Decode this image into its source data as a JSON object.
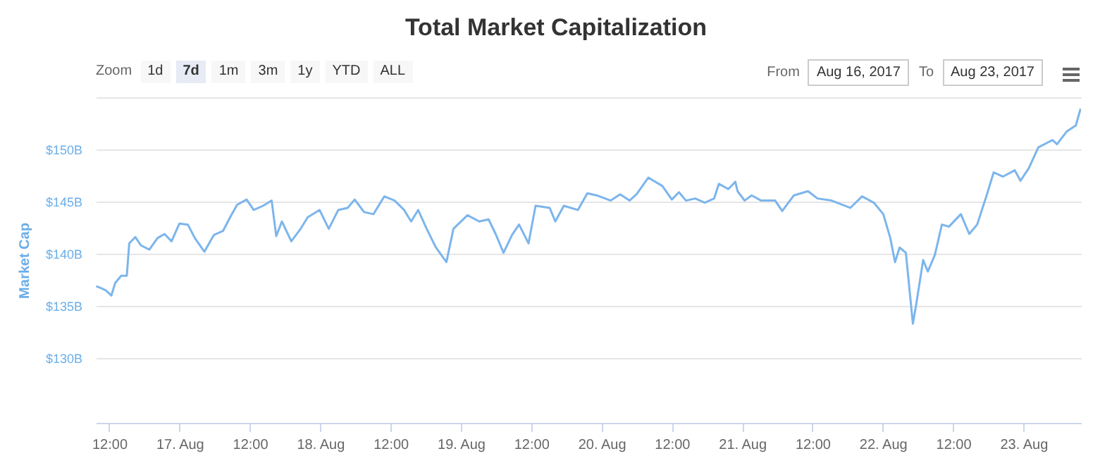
{
  "chart_data": {
    "type": "line",
    "title": "Total Market Capitalization",
    "ylabel": "Market Cap",
    "color": "#7cb5ec",
    "annotations": [
      "Zoom",
      "1d",
      "7d",
      "1m",
      "3m",
      "1y",
      "YTD",
      "ALL",
      "From",
      "Aug 16, 2017",
      "To",
      "Aug 23, 2017"
    ],
    "x": [
      "2017-08-16T09:47",
      "2017-08-16T10:37",
      "2017-08-16T11:24",
      "2017-08-16T12:22",
      "2017-08-16T13:01",
      "2017-08-16T14:03",
      "2017-08-16T15:00",
      "2017-08-16T15:25",
      "2017-08-16T16:27",
      "2017-08-16T17:25",
      "2017-08-16T18:51",
      "2017-08-16T20:14",
      "2017-08-16T21:26",
      "2017-08-16T22:38",
      "2017-08-16T23:59",
      "2017-08-17T01:25",
      "2017-08-17T02:37",
      "2017-08-17T04:14",
      "2017-08-17T05:51",
      "2017-08-17T07:26",
      "2017-08-17T08:38",
      "2017-08-17T09:50",
      "2017-08-17T11:27",
      "2017-08-17T12:39",
      "2017-08-17T14:16",
      "2017-08-17T15:43",
      "2017-08-17T16:30",
      "2017-08-17T17:28",
      "2017-08-17T19:04",
      "2017-08-17T20:40",
      "2017-08-17T21:52",
      "2017-08-17T23:53",
      "2017-08-18T01:28",
      "2017-08-18T03:05",
      "2017-08-18T04:41",
      "2017-08-18T05:53",
      "2017-08-18T07:29",
      "2017-08-18T09:05",
      "2017-08-18T10:56",
      "2017-08-18T12:42",
      "2017-08-18T14:19",
      "2017-08-18T15:31",
      "2017-08-18T16:43",
      "2017-08-18T18:10",
      "2017-08-18T19:45",
      "2017-08-18T21:32",
      "2017-08-18T22:44",
      "2017-08-19T01:08",
      "2017-08-19T03:08",
      "2017-08-19T04:44",
      "2017-08-19T05:56",
      "2017-08-19T07:17",
      "2017-08-19T08:44",
      "2017-08-19T09:56",
      "2017-08-19T11:33",
      "2017-08-19T12:45",
      "2017-08-19T15:10",
      "2017-08-19T16:07",
      "2017-08-19T17:34",
      "2017-08-19T19:58",
      "2017-08-19T21:35",
      "2017-08-19T23:10",
      "2017-08-20T01:34",
      "2017-08-20T03:11",
      "2017-08-20T04:47",
      "2017-08-20T05:59",
      "2017-08-20T07:59",
      "2017-08-20T10:23",
      "2017-08-20T12:00",
      "2017-08-20T13:13",
      "2017-08-20T14:25",
      "2017-08-20T16:00",
      "2017-08-20T17:37",
      "2017-08-20T19:13",
      "2017-08-20T20:01",
      "2017-08-20T21:38",
      "2017-08-20T22:50",
      "2017-08-20T23:13",
      "2017-08-21T00:25",
      "2017-08-21T01:37",
      "2017-08-21T03:14",
      "2017-08-21T05:38",
      "2017-08-21T06:50",
      "2017-08-21T08:50",
      "2017-08-21T11:14",
      "2017-08-21T12:51",
      "2017-08-21T15:15",
      "2017-08-21T18:27",
      "2017-08-21T20:28",
      "2017-08-21T22:28",
      "2017-08-22T00:05",
      "2017-08-22T01:17",
      "2017-08-22T02:05",
      "2017-08-22T02:52",
      "2017-08-22T03:56",
      "2017-08-22T05:08",
      "2017-08-22T05:41",
      "2017-08-22T06:53",
      "2017-08-22T07:41",
      "2017-08-22T08:53",
      "2017-08-22T10:05",
      "2017-08-22T11:17",
      "2017-08-22T13:19",
      "2017-08-22T14:45",
      "2017-08-22T16:06",
      "2017-08-22T17:43",
      "2017-08-22T18:55",
      "2017-08-22T20:31",
      "2017-08-22T22:31",
      "2017-08-22T23:29",
      "2017-08-23T00:55",
      "2017-08-23T02:32",
      "2017-08-23T04:56",
      "2017-08-23T05:44",
      "2017-08-23T07:21",
      "2017-08-23T08:56",
      "2017-08-23T09:45"
    ],
    "values": [
      136.9,
      136.7,
      136.5,
      136.0,
      137.2,
      137.9,
      137.9,
      141.0,
      141.6,
      140.8,
      140.4,
      141.5,
      141.9,
      141.2,
      142.9,
      142.8,
      141.5,
      140.2,
      141.8,
      142.2,
      143.5,
      144.7,
      145.2,
      144.2,
      144.6,
      145.1,
      141.7,
      143.1,
      141.2,
      142.4,
      143.5,
      144.2,
      142.4,
      144.2,
      144.4,
      145.2,
      144.0,
      143.8,
      145.5,
      145.1,
      144.2,
      143.1,
      144.2,
      142.4,
      140.6,
      139.2,
      142.4,
      143.7,
      143.1,
      143.3,
      141.9,
      140.1,
      141.8,
      142.8,
      141.0,
      144.6,
      144.4,
      143.1,
      144.6,
      144.2,
      145.8,
      145.6,
      145.1,
      145.7,
      145.1,
      145.7,
      147.3,
      146.5,
      145.2,
      145.9,
      145.1,
      145.3,
      144.9,
      145.3,
      146.7,
      146.2,
      146.9,
      146.0,
      145.1,
      145.6,
      145.1,
      145.1,
      144.1,
      145.6,
      146.0,
      145.3,
      145.1,
      144.4,
      145.5,
      144.9,
      143.8,
      141.5,
      139.2,
      140.6,
      140.1,
      133.3,
      135.1,
      139.4,
      138.3,
      139.9,
      142.8,
      142.6,
      143.8,
      141.9,
      142.8,
      145.6,
      147.8,
      147.4,
      148.0,
      147.0,
      148.2,
      150.2,
      150.9,
      150.5,
      151.7,
      152.3,
      153.9
    ],
    "xlim": [
      "2017-08-16T09:43",
      "2017-08-23T09:49"
    ],
    "xticks": [
      {
        "value": "2017-08-16T12:00",
        "label": "12:00"
      },
      {
        "value": "2017-08-17T00:00",
        "label": "17. Aug"
      },
      {
        "value": "2017-08-17T12:00",
        "label": "12:00"
      },
      {
        "value": "2017-08-18T00:00",
        "label": "18. Aug"
      },
      {
        "value": "2017-08-18T12:00",
        "label": "12:00"
      },
      {
        "value": "2017-08-19T00:00",
        "label": "19. Aug"
      },
      {
        "value": "2017-08-19T12:00",
        "label": "12:00"
      },
      {
        "value": "2017-08-20T00:00",
        "label": "20. Aug"
      },
      {
        "value": "2017-08-20T12:00",
        "label": "12:00"
      },
      {
        "value": "2017-08-21T00:00",
        "label": "21. Aug"
      },
      {
        "value": "2017-08-21T12:00",
        "label": "12:00"
      },
      {
        "value": "2017-08-22T00:00",
        "label": "22. Aug"
      },
      {
        "value": "2017-08-22T12:00",
        "label": "12:00"
      },
      {
        "value": "2017-08-23T00:00",
        "label": "23. Aug"
      }
    ],
    "ylim": [
      123.8,
      155
    ],
    "yticks": [
      {
        "value": 130,
        "label": "$130B"
      },
      {
        "value": 135,
        "label": "$135B"
      },
      {
        "value": 140,
        "label": "$140B"
      },
      {
        "value": 145,
        "label": "$145B"
      },
      {
        "value": 150,
        "label": "$150B"
      },
      {
        "value": 155,
        "label": null
      }
    ],
    "grid": "y"
  }
}
